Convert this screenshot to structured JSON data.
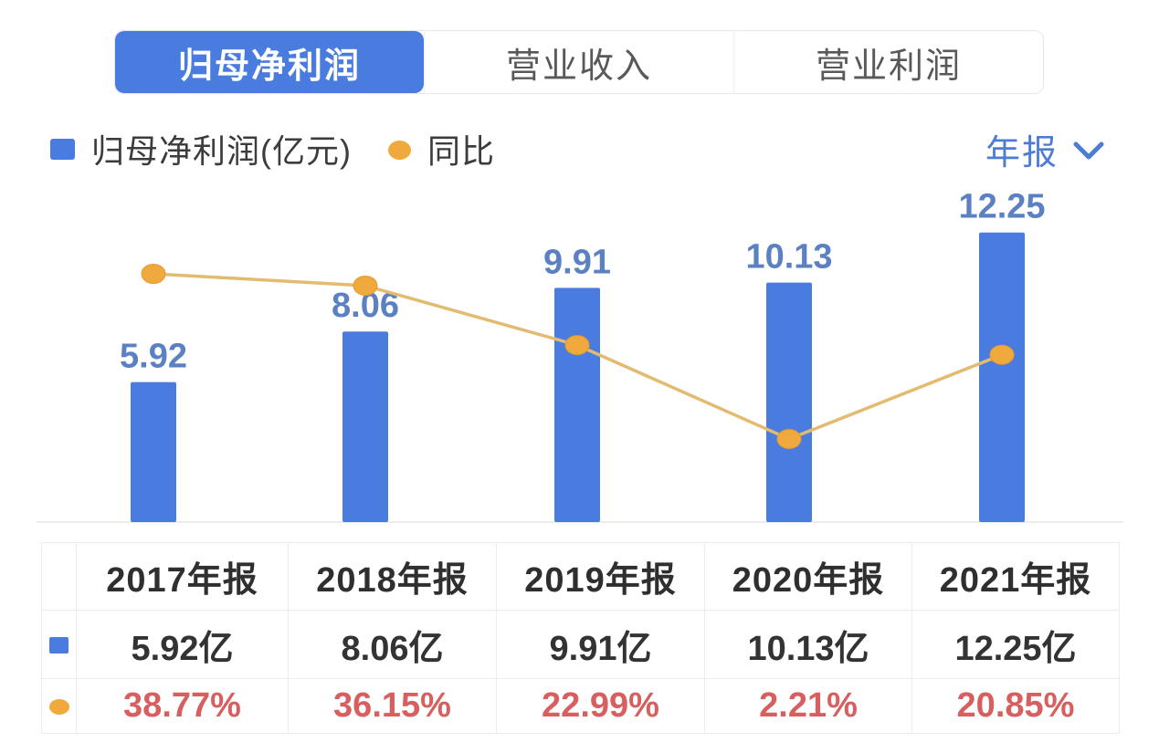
{
  "tabs": [
    {
      "label": "归母净利润",
      "active": true
    },
    {
      "label": "营业收入",
      "active": false
    },
    {
      "label": "营业利润",
      "active": false
    }
  ],
  "legend": {
    "bar_label": "归母净利润(亿元)",
    "line_label": "同比"
  },
  "period": {
    "label": "年报"
  },
  "colors": {
    "primary_blue": "#4a7ce0",
    "bar_label_blue": "#5b81c2",
    "link_blue": "#4d7cd6",
    "line_orange": "#e3bb70",
    "marker_orange": "#f0a93c",
    "pct_red": "#d85f5f",
    "text_dark": "#333333",
    "tab_inactive_gray": "#595959",
    "table_border": "#ececec"
  },
  "chart_data": {
    "type": "bar",
    "subtype": "bar+line-combo",
    "categories": [
      "2017年报",
      "2018年报",
      "2019年报",
      "2020年报",
      "2021年报"
    ],
    "series": [
      {
        "name": "归母净利润(亿元)",
        "type": "bar",
        "values": [
          5.92,
          8.06,
          9.91,
          10.13,
          12.25
        ],
        "labels": [
          "5.92",
          "8.06",
          "9.91",
          "10.13",
          "12.25"
        ],
        "color": "#4a7ce0"
      },
      {
        "name": "同比",
        "type": "line",
        "unit": "%",
        "values": [
          38.77,
          36.15,
          22.99,
          2.21,
          20.85
        ],
        "color": "#f0a93c"
      }
    ],
    "title": "",
    "xlabel": "",
    "ylabel": "",
    "bar_ylim": [
      0,
      14
    ],
    "pct_ylim": [
      -15,
      45
    ],
    "grid": false,
    "value_labels": "bar-series-only",
    "legend_position": "top-left"
  },
  "table": {
    "headers": [
      "",
      "2017年报",
      "2018年报",
      "2019年报",
      "2020年报",
      "2021年报"
    ],
    "rows": [
      {
        "icon": "blue-square-icon",
        "values": [
          "5.92亿",
          "8.06亿",
          "9.91亿",
          "10.13亿",
          "12.25亿"
        ]
      },
      {
        "icon": "orange-dot-icon",
        "values": [
          "38.77%",
          "36.15%",
          "22.99%",
          "2.21%",
          "20.85%"
        ]
      }
    ]
  }
}
